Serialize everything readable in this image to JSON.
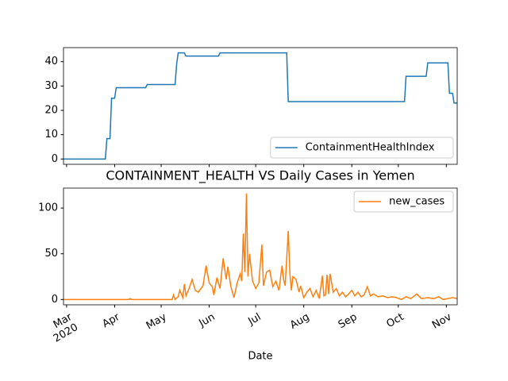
{
  "chart_data": [
    {
      "type": "line",
      "x": [
        "2020-02-28",
        "2020-03-26",
        "2020-03-27",
        "2020-03-29",
        "2020-03-30",
        "2020-04-01",
        "2020-04-02",
        "2020-04-21",
        "2020-04-22",
        "2020-05-10",
        "2020-05-11",
        "2020-05-12",
        "2020-05-16",
        "2020-05-17",
        "2020-06-07",
        "2020-06-08",
        "2020-07-21",
        "2020-07-22",
        "2020-10-05",
        "2020-10-06",
        "2020-10-19",
        "2020-10-20",
        "2020-11-02",
        "2020-11-03",
        "2020-11-05",
        "2020-11-06",
        "2020-11-08"
      ],
      "series": [
        {
          "name": "ContainmentHealthIndex",
          "color": "#1f77b4",
          "values": [
            0,
            0,
            8.4,
            8.4,
            25,
            25,
            29.3,
            29.3,
            30.6,
            30.6,
            39,
            43.6,
            43.6,
            42.3,
            42.3,
            43.6,
            43.6,
            23.6,
            23.6,
            34,
            34,
            39.5,
            39.5,
            27,
            27,
            23,
            23
          ]
        }
      ],
      "xlim": [
        "2020-02-28",
        "2020-11-08"
      ],
      "ylim": [
        -2.18,
        45.78
      ],
      "yticks": [
        0,
        10,
        20,
        30,
        40
      ],
      "legend": "lower right"
    },
    {
      "type": "line",
      "title": "CONTAINMENT_HEALTH VS Daily Cases in Yemen",
      "xlabel": "Date",
      "x": [
        "2020-02-28",
        "2020-04-10",
        "2020-04-11",
        "2020-04-12",
        "2020-05-08",
        "2020-05-09",
        "2020-05-10",
        "2020-05-12",
        "2020-05-13",
        "2020-05-15",
        "2020-05-16",
        "2020-05-17",
        "2020-05-19",
        "2020-05-21",
        "2020-05-23",
        "2020-05-25",
        "2020-05-28",
        "2020-05-30",
        "2020-06-01",
        "2020-06-03",
        "2020-06-04",
        "2020-06-06",
        "2020-06-08",
        "2020-06-10",
        "2020-06-12",
        "2020-06-13",
        "2020-06-15",
        "2020-06-17",
        "2020-06-19",
        "2020-06-21",
        "2020-06-22",
        "2020-06-23",
        "2020-06-24",
        "2020-06-25",
        "2020-06-26",
        "2020-06-27",
        "2020-06-29",
        "2020-07-01",
        "2020-07-03",
        "2020-07-05",
        "2020-07-06",
        "2020-07-08",
        "2020-07-10",
        "2020-07-12",
        "2020-07-14",
        "2020-07-16",
        "2020-07-18",
        "2020-07-19",
        "2020-07-20",
        "2020-07-22",
        "2020-07-23",
        "2020-07-24",
        "2020-07-25",
        "2020-07-27",
        "2020-07-29",
        "2020-07-30",
        "2020-08-01",
        "2020-08-03",
        "2020-08-05",
        "2020-08-07",
        "2020-08-09",
        "2020-08-11",
        "2020-08-13",
        "2020-08-14",
        "2020-08-15",
        "2020-08-16",
        "2020-08-17",
        "2020-08-18",
        "2020-08-20",
        "2020-08-22",
        "2020-08-24",
        "2020-08-26",
        "2020-08-28",
        "2020-08-30",
        "2020-09-01",
        "2020-09-03",
        "2020-09-05",
        "2020-09-07",
        "2020-09-09",
        "2020-09-11",
        "2020-09-13",
        "2020-09-15",
        "2020-09-18",
        "2020-09-21",
        "2020-09-24",
        "2020-09-27",
        "2020-09-30",
        "2020-10-03",
        "2020-10-06",
        "2020-10-09",
        "2020-10-13",
        "2020-10-16",
        "2020-10-20",
        "2020-10-24",
        "2020-10-27",
        "2020-10-30",
        "2020-11-02",
        "2020-11-05",
        "2020-11-08"
      ],
      "series": [
        {
          "name": "new_cases",
          "color": "#ff7f0e",
          "values": [
            0,
            0,
            1,
            0,
            0,
            5,
            0,
            3,
            10,
            2,
            17,
            4,
            12,
            22,
            10,
            8,
            15,
            37,
            18,
            14,
            5,
            24,
            12,
            45,
            22,
            36,
            14,
            2,
            18,
            28,
            20,
            72,
            30,
            116,
            25,
            50,
            20,
            12,
            18,
            60,
            15,
            30,
            32,
            14,
            20,
            10,
            37,
            22,
            15,
            75,
            30,
            10,
            25,
            22,
            8,
            15,
            2,
            8,
            12,
            3,
            10,
            1,
            26,
            4,
            5,
            27,
            6,
            28,
            8,
            12,
            4,
            8,
            3,
            6,
            10,
            4,
            8,
            3,
            5,
            14,
            4,
            6,
            3,
            4,
            2,
            3,
            2,
            0,
            3,
            1,
            6,
            1,
            2,
            1,
            3,
            0,
            1,
            2,
            1
          ]
        }
      ],
      "xlim": [
        "2020-02-28",
        "2020-11-08"
      ],
      "xticks": [
        {
          "value": "2020-03-01",
          "label": "Mar\n2020"
        },
        {
          "value": "2020-04-01",
          "label": "Apr"
        },
        {
          "value": "2020-05-01",
          "label": "May"
        },
        {
          "value": "2020-06-01",
          "label": "Jun"
        },
        {
          "value": "2020-07-01",
          "label": "Jul"
        },
        {
          "value": "2020-08-01",
          "label": "Aug"
        },
        {
          "value": "2020-09-01",
          "label": "Sep"
        },
        {
          "value": "2020-10-01",
          "label": "Oct"
        },
        {
          "value": "2020-11-01",
          "label": "Nov"
        }
      ],
      "ylim": [
        -5.8,
        121.8
      ],
      "yticks": [
        0,
        50,
        100
      ],
      "legend": "upper right"
    }
  ]
}
